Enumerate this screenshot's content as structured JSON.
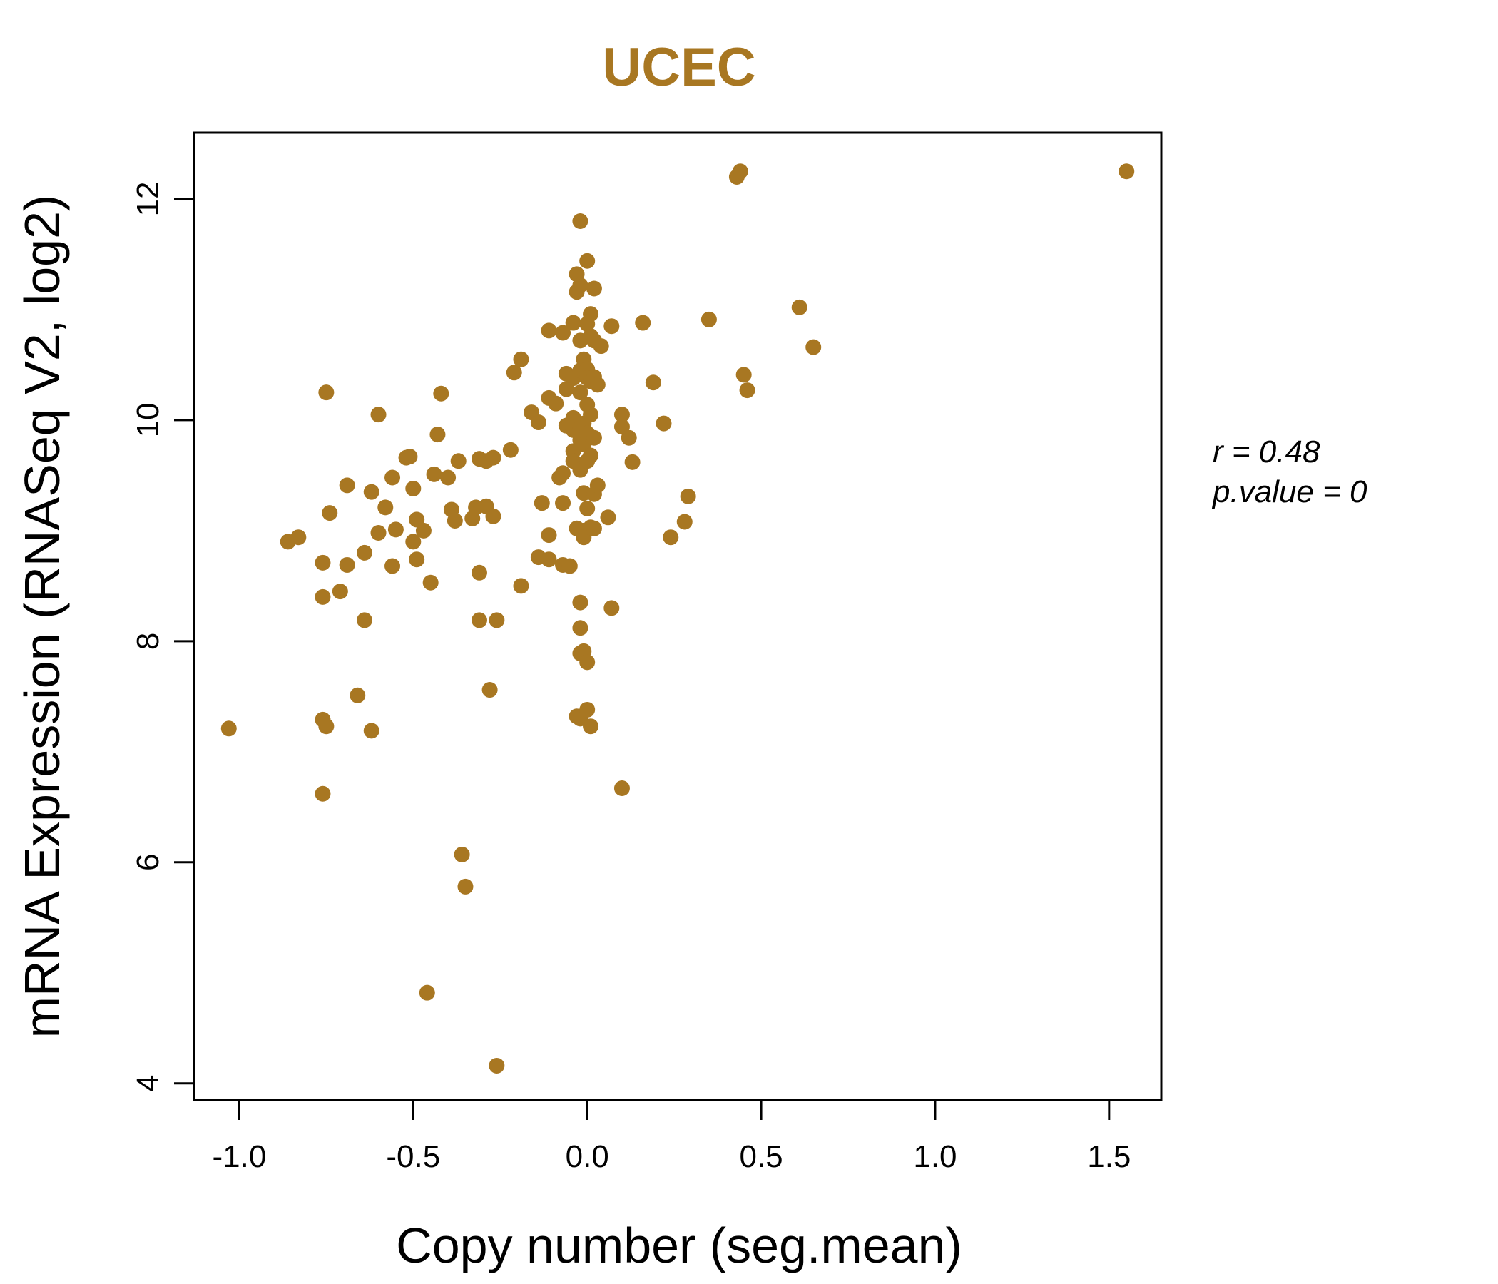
{
  "chart_data": {
    "type": "scatter",
    "title": "UCEC",
    "xlabel": "Copy number (seg.mean)",
    "ylabel": "mRNA Expression (RNASeq V2, log2)",
    "xlim": [
      -1.13,
      1.65
    ],
    "ylim": [
      3.85,
      12.6
    ],
    "x_ticks": [
      -1.0,
      -0.5,
      0.0,
      0.5,
      1.0,
      1.5
    ],
    "x_tick_labels": [
      "-1.0",
      "-0.5",
      "0.0",
      "0.5",
      "1.0",
      "1.5"
    ],
    "y_ticks": [
      4,
      6,
      8,
      10,
      12
    ],
    "y_tick_labels": [
      "4",
      "6",
      "8",
      "10",
      "12"
    ],
    "grid": false,
    "point_color": "#A87722",
    "annotations": {
      "r_label": "r = 0.48",
      "p_label": "p.value = 0"
    },
    "points": [
      [
        -1.03,
        7.21
      ],
      [
        -0.86,
        8.9
      ],
      [
        -0.83,
        8.94
      ],
      [
        -0.76,
        8.71
      ],
      [
        -0.76,
        8.4
      ],
      [
        -0.76,
        7.29
      ],
      [
        -0.75,
        7.23
      ],
      [
        -0.76,
        6.62
      ],
      [
        -0.75,
        10.25
      ],
      [
        -0.74,
        9.16
      ],
      [
        -0.71,
        8.45
      ],
      [
        -0.69,
        9.41
      ],
      [
        -0.69,
        8.69
      ],
      [
        -0.66,
        7.51
      ],
      [
        -0.64,
        8.8
      ],
      [
        -0.64,
        8.19
      ],
      [
        -0.62,
        9.35
      ],
      [
        -0.62,
        7.19
      ],
      [
        -0.6,
        10.05
      ],
      [
        -0.6,
        8.98
      ],
      [
        -0.58,
        9.21
      ],
      [
        -0.56,
        9.48
      ],
      [
        -0.56,
        8.68
      ],
      [
        -0.55,
        9.01
      ],
      [
        -0.52,
        9.66
      ],
      [
        -0.51,
        9.67
      ],
      [
        -0.5,
        9.38
      ],
      [
        -0.5,
        8.9
      ],
      [
        -0.49,
        9.1
      ],
      [
        -0.49,
        8.74
      ],
      [
        -0.47,
        9.0
      ],
      [
        -0.46,
        4.82
      ],
      [
        -0.45,
        8.53
      ],
      [
        -0.44,
        9.51
      ],
      [
        -0.43,
        9.87
      ],
      [
        -0.42,
        10.24
      ],
      [
        -0.4,
        9.48
      ],
      [
        -0.39,
        9.19
      ],
      [
        -0.38,
        9.09
      ],
      [
        -0.37,
        9.63
      ],
      [
        -0.36,
        6.07
      ],
      [
        -0.35,
        5.78
      ],
      [
        -0.33,
        9.11
      ],
      [
        -0.32,
        9.21
      ],
      [
        -0.31,
        9.65
      ],
      [
        -0.31,
        8.62
      ],
      [
        -0.31,
        8.19
      ],
      [
        -0.29,
        9.22
      ],
      [
        -0.29,
        9.63
      ],
      [
        -0.28,
        7.56
      ],
      [
        -0.27,
        9.13
      ],
      [
        -0.27,
        9.66
      ],
      [
        -0.26,
        8.19
      ],
      [
        -0.26,
        4.16
      ],
      [
        -0.22,
        9.73
      ],
      [
        -0.21,
        10.43
      ],
      [
        -0.19,
        10.55
      ],
      [
        -0.19,
        8.5
      ],
      [
        -0.16,
        10.07
      ],
      [
        -0.14,
        9.98
      ],
      [
        -0.14,
        8.76
      ],
      [
        -0.13,
        9.25
      ],
      [
        -0.11,
        10.81
      ],
      [
        -0.11,
        10.2
      ],
      [
        -0.11,
        8.96
      ],
      [
        -0.11,
        8.74
      ],
      [
        -0.09,
        10.15
      ],
      [
        -0.08,
        9.48
      ],
      [
        -0.07,
        10.79
      ],
      [
        -0.07,
        9.25
      ],
      [
        -0.07,
        9.52
      ],
      [
        -0.07,
        8.69
      ],
      [
        -0.06,
        10.42
      ],
      [
        -0.06,
        10.28
      ],
      [
        -0.06,
        9.95
      ],
      [
        -0.05,
        8.68
      ],
      [
        -0.04,
        10.88
      ],
      [
        -0.04,
        10.38
      ],
      [
        -0.04,
        10.02
      ],
      [
        -0.04,
        9.91
      ],
      [
        -0.04,
        9.72
      ],
      [
        -0.04,
        9.63
      ],
      [
        -0.03,
        11.32
      ],
      [
        -0.03,
        11.16
      ],
      [
        -0.03,
        9.02
      ],
      [
        -0.03,
        7.32
      ],
      [
        -0.02,
        11.22
      ],
      [
        -0.02,
        11.8
      ],
      [
        -0.02,
        10.72
      ],
      [
        -0.02,
        10.45
      ],
      [
        -0.02,
        10.25
      ],
      [
        -0.02,
        9.93
      ],
      [
        -0.02,
        9.82
      ],
      [
        -0.02,
        9.55
      ],
      [
        -0.02,
        8.35
      ],
      [
        -0.02,
        8.12
      ],
      [
        -0.02,
        7.89
      ],
      [
        -0.02,
        7.3
      ],
      [
        -0.01,
        10.55
      ],
      [
        -0.01,
        9.97
      ],
      [
        -0.01,
        9.78
      ],
      [
        -0.01,
        9.34
      ],
      [
        -0.01,
        9.0
      ],
      [
        -0.01,
        8.94
      ],
      [
        -0.01,
        7.91
      ],
      [
        0.0,
        11.44
      ],
      [
        0.0,
        10.87
      ],
      [
        0.0,
        10.46
      ],
      [
        0.0,
        10.38
      ],
      [
        0.0,
        10.14
      ],
      [
        0.0,
        9.88
      ],
      [
        0.0,
        9.63
      ],
      [
        0.0,
        9.2
      ],
      [
        0.0,
        7.81
      ],
      [
        0.0,
        7.38
      ],
      [
        0.01,
        10.96
      ],
      [
        0.01,
        10.76
      ],
      [
        0.01,
        10.35
      ],
      [
        0.01,
        10.05
      ],
      [
        0.01,
        9.68
      ],
      [
        0.01,
        9.03
      ],
      [
        0.01,
        7.23
      ],
      [
        0.02,
        11.19
      ],
      [
        0.02,
        10.72
      ],
      [
        0.02,
        10.39
      ],
      [
        0.02,
        9.84
      ],
      [
        0.02,
        9.33
      ],
      [
        0.02,
        9.02
      ],
      [
        0.03,
        10.32
      ],
      [
        0.03,
        9.41
      ],
      [
        0.04,
        10.67
      ],
      [
        0.06,
        9.12
      ],
      [
        0.07,
        10.85
      ],
      [
        0.07,
        8.3
      ],
      [
        0.1,
        10.05
      ],
      [
        0.1,
        9.94
      ],
      [
        0.1,
        6.67
      ],
      [
        0.12,
        9.84
      ],
      [
        0.13,
        9.62
      ],
      [
        0.16,
        10.88
      ],
      [
        0.19,
        10.34
      ],
      [
        0.22,
        9.97
      ],
      [
        0.24,
        8.94
      ],
      [
        0.28,
        9.08
      ],
      [
        0.29,
        9.31
      ],
      [
        0.35,
        10.91
      ],
      [
        0.43,
        12.2
      ],
      [
        0.44,
        12.25
      ],
      [
        0.45,
        10.41
      ],
      [
        0.46,
        10.27
      ],
      [
        0.61,
        11.02
      ],
      [
        0.65,
        10.66
      ],
      [
        1.55,
        12.25
      ]
    ]
  }
}
